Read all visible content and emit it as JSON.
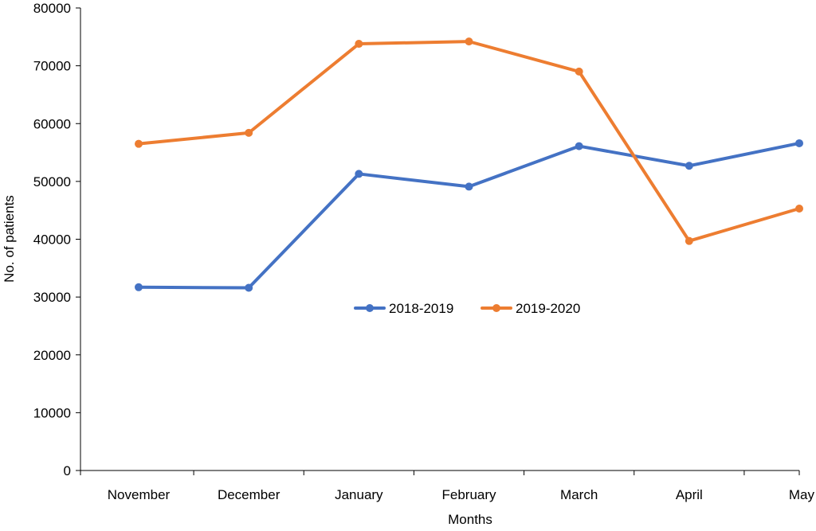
{
  "chart_data": {
    "type": "line",
    "title": "",
    "xlabel": "Months",
    "ylabel": "No. of patients",
    "categories": [
      "November",
      "December",
      "January",
      "February",
      "March",
      "April",
      "May"
    ],
    "ylim": [
      0,
      80000
    ],
    "yticks": [
      0,
      10000,
      20000,
      30000,
      40000,
      50000,
      60000,
      70000,
      80000
    ],
    "grid": false,
    "legend_position": "center",
    "series": [
      {
        "name": "2018-2019",
        "color": "#4472C4",
        "values": [
          31700,
          31600,
          51300,
          49100,
          56100,
          52700,
          56600
        ]
      },
      {
        "name": "2019-2020",
        "color": "#ED7D31",
        "values": [
          56500,
          58400,
          73800,
          74200,
          69000,
          39700,
          45300
        ]
      }
    ]
  }
}
